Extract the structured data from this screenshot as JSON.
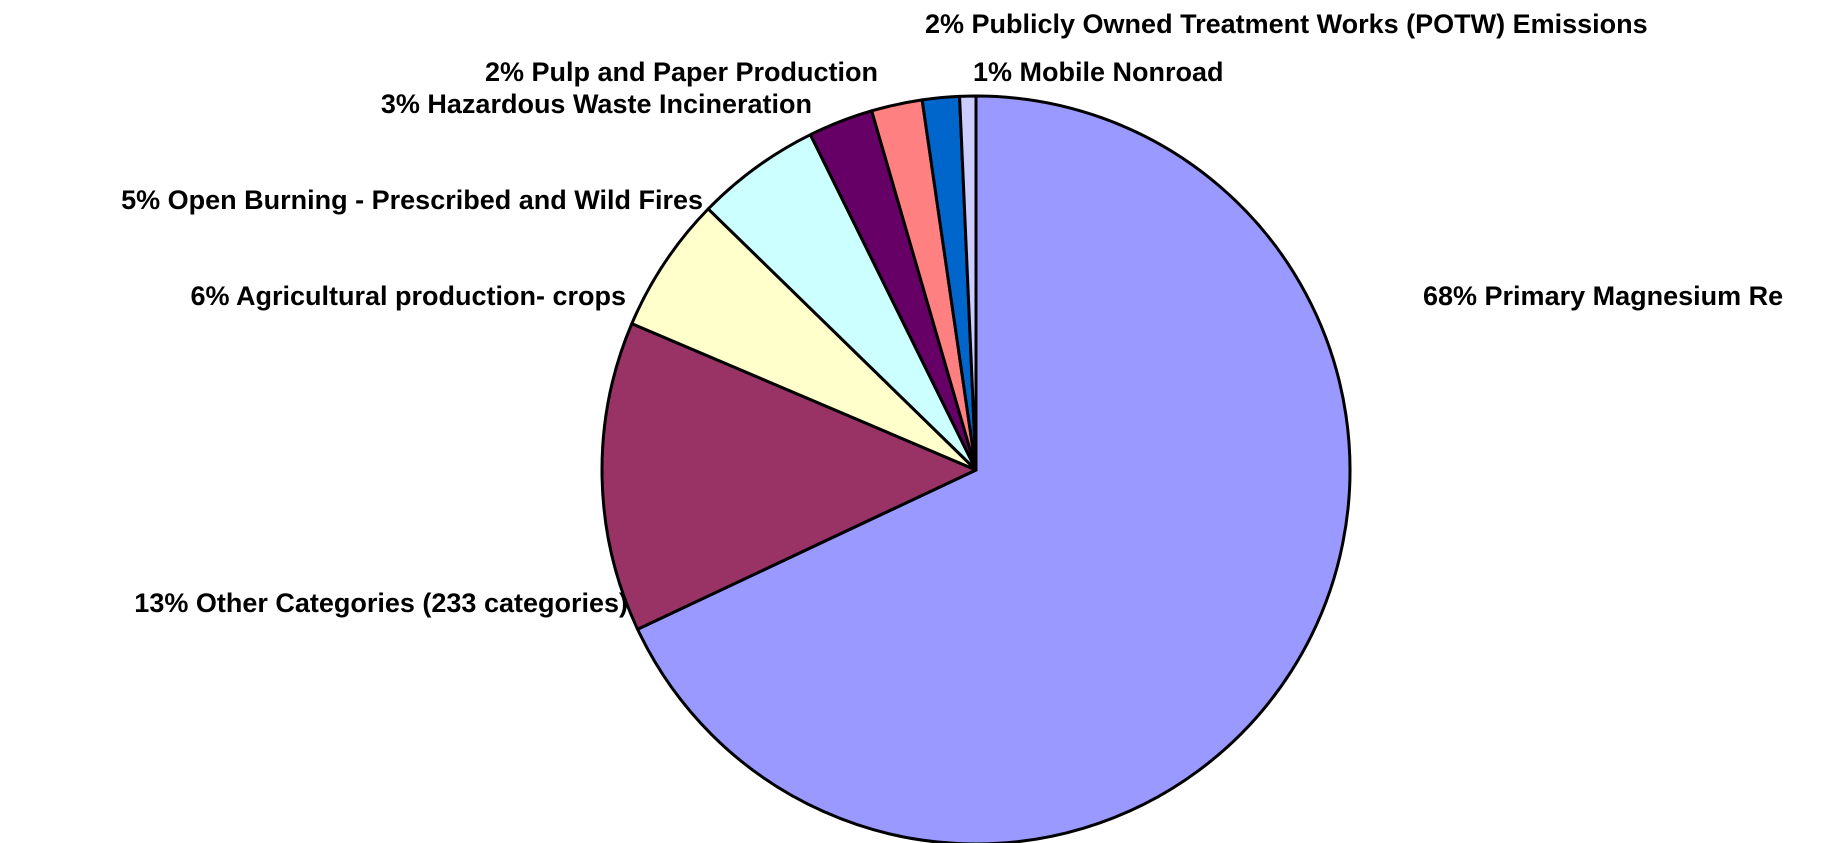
{
  "chart_data": {
    "type": "pie",
    "start": "12 o'clock",
    "direction": "clockwise",
    "slices": [
      {
        "label": "68% Primary Magnesium Re",
        "percent": 68.0,
        "color": "#9999FF"
      },
      {
        "label": "13% Other Categories (233 categories)",
        "percent": 13.4,
        "color": "#993366"
      },
      {
        "label": "6% Agricultural production- crops",
        "percent": 5.9,
        "color": "#FFFFCC"
      },
      {
        "label": "5% Open Burning - Prescribed and Wild Fires",
        "percent": 5.4,
        "color": "#CCFFFF"
      },
      {
        "label": "3% Hazardous Waste Incineration",
        "percent": 2.8,
        "color": "#660066"
      },
      {
        "label": "2% Pulp and Paper Production",
        "percent": 2.2,
        "color": "#FF8080"
      },
      {
        "label": "2% Publicly Owned Treatment Works (POTW) Emissions",
        "percent": 1.6,
        "color": "#0066CC"
      },
      {
        "label": "1% Mobile Nonroad",
        "percent": 0.7,
        "color": "#CCCCFF"
      }
    ]
  }
}
